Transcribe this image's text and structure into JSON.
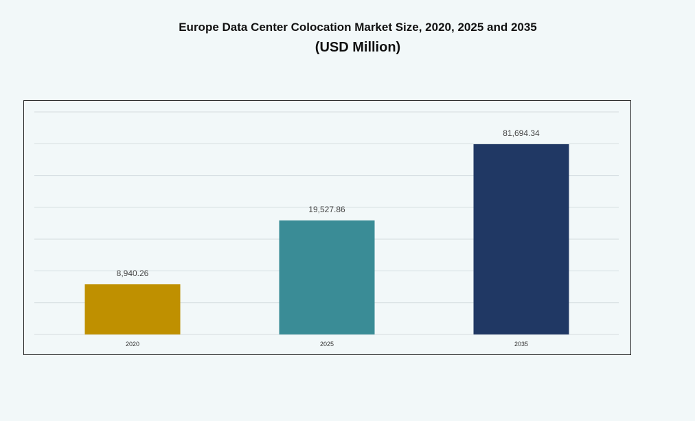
{
  "chart_data": {
    "type": "bar",
    "title": "Europe Data Center Colocation Market Size, 2020, 2025 and 2035",
    "subtitle": "(USD Million)",
    "categories": [
      "2020",
      "2025",
      "2035"
    ],
    "values": [
      8940.26,
      19527.86,
      81694.34
    ],
    "value_labels": [
      "8,940.26",
      "19,527.86",
      "81,694.34"
    ],
    "colors": [
      "#bf9000",
      "#3a8c96",
      "#203864"
    ],
    "grid": true,
    "xlabel": "",
    "ylabel": ""
  }
}
